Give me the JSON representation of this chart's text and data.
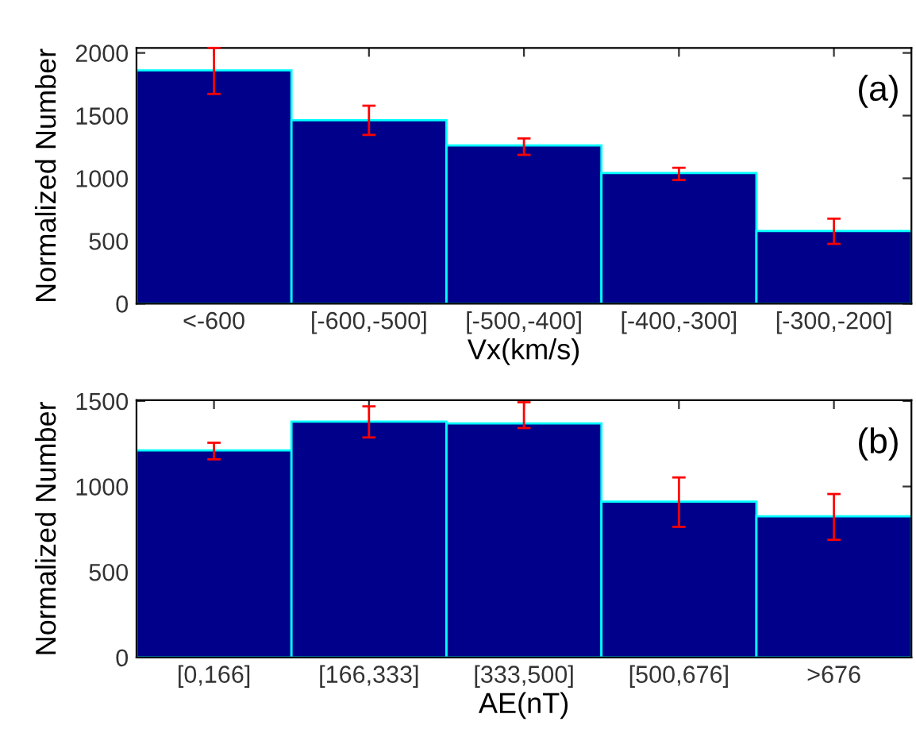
{
  "chart_data": [
    {
      "type": "bar",
      "categories": [
        "<-600",
        "[-600,-500]",
        "[-500,-400]",
        "[-400,-300]",
        "[-300,-200]"
      ],
      "values": [
        1860,
        1463,
        1262,
        1042,
        579
      ],
      "color": "#00008b",
      "errors": [
        [
          1673,
          2040
        ],
        [
          1346,
          1579
        ],
        [
          1187,
          1318
        ],
        [
          986,
          1084
        ],
        [
          477,
          678
        ]
      ],
      "ylim": [
        0,
        2040
      ],
      "yticks": [
        0,
        500,
        1000,
        1500,
        2000
      ],
      "xlabel": "Vx(km/s)",
      "ylabel": "Normalized Number",
      "annotations": [
        "(a)"
      ],
      "grid": false
    },
    {
      "type": "bar",
      "categories": [
        "[0,166]",
        "[166,333]",
        "[333,500]",
        "[500,676]",
        ">676"
      ],
      "values": [
        1211,
        1380,
        1369,
        912,
        826
      ],
      "color": "#00008b",
      "errors": [
        [
          1159,
          1256
        ],
        [
          1287,
          1469
        ],
        [
          1342,
          1493
        ],
        [
          764,
          1053
        ],
        [
          688,
          956
        ]
      ],
      "ylim": [
        0,
        1505
      ],
      "yticks": [
        0,
        500,
        1000,
        1500
      ],
      "xlabel": "AE(nT)",
      "ylabel": "Normalized Number",
      "annotations": [
        "(b)"
      ],
      "grid": false
    }
  ]
}
